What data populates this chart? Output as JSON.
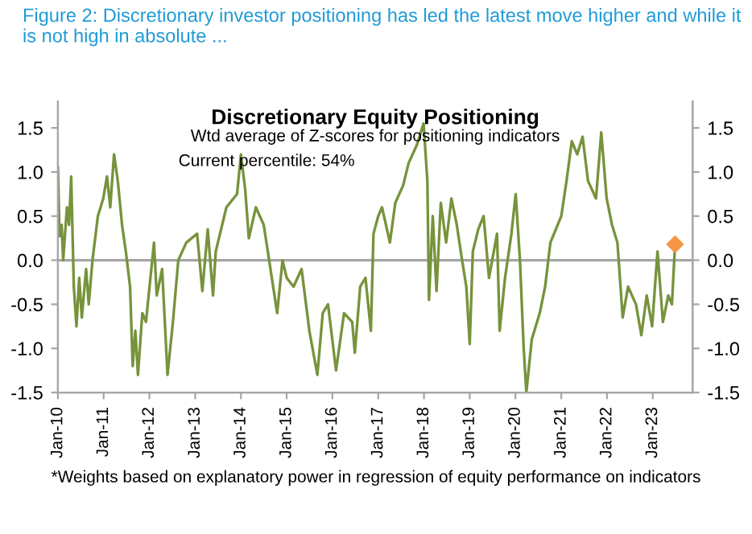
{
  "chart_data": {
    "type": "line",
    "title": "Discretionary Equity Positioning",
    "subtitle": "Wtd average of Z-scores for positioning indicators",
    "annotations": [
      "Figure 2: Discretionary investor positioning has led the latest move higher and while it is not high in absolute ...",
      "Current percentile: 54%",
      "*Weights based on explanatory power in regression of equity performance on indicators"
    ],
    "series": [
      {
        "color": "#77933c",
        "x": [
          "2010-01-01",
          "2010-01-14",
          "2010-01-31",
          "2010-02-12",
          "2010-03-14",
          "2010-03-31",
          "2010-04-17",
          "2010-05-08",
          "2010-05-29",
          "2010-06-20",
          "2010-07-11",
          "2010-08-14",
          "2010-09-04",
          "2010-10-04",
          "2010-11-16",
          "2010-12-29",
          "2011-01-28",
          "2011-02-23",
          "2011-03-25",
          "2011-04-24",
          "2011-05-28",
          "2011-06-27",
          "2011-07-31",
          "2011-08-21",
          "2011-09-11",
          "2011-10-02",
          "2011-11-06",
          "2011-12-05",
          "2012-02-07",
          "2012-02-29",
          "2012-04-12",
          "2012-05-25",
          "2012-07-07",
          "2012-08-19",
          "2012-10-22",
          "2013-01-16",
          "2013-02-27",
          "2013-04-11",
          "2013-05-23",
          "2013-06-14",
          "2013-09-07",
          "2013-12-01",
          "2014-01-01",
          "2014-02-04",
          "2014-03-05",
          "2014-04-30",
          "2014-07-02",
          "2014-08-14",
          "2014-10-17",
          "2014-11-29",
          "2015-01-01",
          "2015-02-25",
          "2015-04-30",
          "2015-07-01",
          "2015-09-03",
          "2015-10-16",
          "2015-11-27",
          "2016-01-30",
          "2016-04-03",
          "2016-06-07",
          "2016-06-28",
          "2016-08-10",
          "2016-09-21",
          "2016-11-03",
          "2016-11-24",
          "2017-01-01",
          "2017-01-31",
          "2017-04-04",
          "2017-05-17",
          "2017-07-19",
          "2017-08-31",
          "2017-11-03",
          "2017-12-29",
          "2018-01-28",
          "2018-02-10",
          "2018-03-12",
          "2018-04-11",
          "2018-05-15",
          "2018-06-27",
          "2018-08-08",
          "2018-09-20",
          "2018-11-01",
          "2018-12-05",
          "2019-01-01",
          "2019-01-26",
          "2019-03-10",
          "2019-04-22",
          "2019-06-04",
          "2019-08-07",
          "2019-08-28",
          "2019-10-10",
          "2019-11-30",
          "2020-01-03",
          "2020-02-06",
          "2020-03-07",
          "2020-03-28",
          "2020-05-10",
          "2020-07-13",
          "2020-08-25",
          "2020-10-06",
          "2021-01-01",
          "2021-02-12",
          "2021-03-26",
          "2021-05-08",
          "2021-06-20",
          "2021-08-02",
          "2021-10-05",
          "2021-11-16",
          "2021-12-29",
          "2022-02-10",
          "2022-03-25",
          "2022-05-06",
          "2022-06-18",
          "2022-08-20",
          "2022-10-02",
          "2022-11-14",
          "2022-12-27",
          "2023-02-08",
          "2023-03-23",
          "2023-05-05",
          "2023-06-03",
          "2023-06-28"
        ],
        "values": [
          1.06,
          0.27,
          0.4,
          0.0,
          0.6,
          0.4,
          0.95,
          -0.3,
          -0.75,
          -0.2,
          -0.65,
          -0.1,
          -0.5,
          0.0,
          0.5,
          0.7,
          0.95,
          0.6,
          1.2,
          0.9,
          0.4,
          0.1,
          -0.3,
          -1.2,
          -0.8,
          -1.3,
          -0.6,
          -0.7,
          0.2,
          -0.4,
          -0.1,
          -1.3,
          -0.7,
          0.0,
          0.2,
          0.3,
          -0.35,
          0.35,
          -0.4,
          0.1,
          0.6,
          0.75,
          1.2,
          0.8,
          0.25,
          0.6,
          0.4,
          0.0,
          -0.6,
          0.0,
          -0.2,
          -0.3,
          -0.1,
          -0.8,
          -1.3,
          -0.6,
          -0.5,
          -1.25,
          -0.6,
          -0.7,
          -1.05,
          -0.3,
          -0.2,
          -0.8,
          0.3,
          0.5,
          0.6,
          0.2,
          0.65,
          0.85,
          1.1,
          1.3,
          1.55,
          0.9,
          -0.45,
          0.5,
          -0.35,
          0.65,
          0.2,
          0.7,
          0.4,
          0.0,
          -0.3,
          -0.95,
          0.1,
          0.35,
          0.5,
          -0.2,
          0.3,
          -0.8,
          -0.2,
          0.3,
          0.75,
          0.0,
          -1.0,
          -1.5,
          -0.9,
          -0.6,
          -0.3,
          0.2,
          0.5,
          0.9,
          1.35,
          1.2,
          1.4,
          0.9,
          0.7,
          1.45,
          0.7,
          0.4,
          0.2,
          -0.65,
          -0.3,
          -0.5,
          -0.85,
          -0.4,
          -0.75,
          0.1,
          -0.7,
          -0.4,
          -0.5,
          0.18
        ]
      },
      {
        "color": "#f79646",
        "type": "scatter",
        "marker": "diamond",
        "x": [
          "2023-06-28"
        ],
        "values": [
          0.18
        ]
      }
    ],
    "xlim": [
      "2010-01-01",
      "2023-11-15"
    ],
    "xticks": [
      {
        "value": "2010-01-01",
        "label": "Jan-10"
      },
      {
        "value": "2011-01-01",
        "label": "Jan-11"
      },
      {
        "value": "2012-01-01",
        "label": "Jan-12"
      },
      {
        "value": "2013-01-01",
        "label": "Jan-13"
      },
      {
        "value": "2014-01-01",
        "label": "Jan-14"
      },
      {
        "value": "2015-01-01",
        "label": "Jan-15"
      },
      {
        "value": "2016-01-01",
        "label": "Jan-16"
      },
      {
        "value": "2017-01-01",
        "label": "Jan-17"
      },
      {
        "value": "2018-01-01",
        "label": "Jan-18"
      },
      {
        "value": "2019-01-01",
        "label": "Jan-19"
      },
      {
        "value": "2020-01-01",
        "label": "Jan-20"
      },
      {
        "value": "2021-01-01",
        "label": "Jan-21"
      },
      {
        "value": "2022-01-01",
        "label": "Jan-22"
      },
      {
        "value": "2023-01-01",
        "label": "Jan-23"
      }
    ],
    "ylim": [
      -1.5,
      1.8
    ],
    "yticks": [
      {
        "value": -1.5,
        "label": "-1.5"
      },
      {
        "value": -1.0,
        "label": "-1.0"
      },
      {
        "value": -0.5,
        "label": "-0.5"
      },
      {
        "value": 0.0,
        "label": "0.0"
      },
      {
        "value": 0.5,
        "label": "0.5"
      },
      {
        "value": 1.0,
        "label": "1.0"
      },
      {
        "value": 1.5,
        "label": "1.5"
      }
    ],
    "y2lim": [
      -1.5,
      1.8
    ],
    "y2ticks": [
      {
        "value": -1.5,
        "label": "-1.5"
      },
      {
        "value": -1.0,
        "label": "-1.0"
      },
      {
        "value": -0.5,
        "label": "-0.5"
      },
      {
        "value": 0.0,
        "label": "0.0"
      },
      {
        "value": 0.5,
        "label": "0.5"
      },
      {
        "value": 1.0,
        "label": "1.0"
      },
      {
        "value": 1.5,
        "label": "1.5"
      }
    ],
    "ref_lines": [
      {
        "axis": "y",
        "value": 0,
        "color": "#a6a6a6"
      }
    ],
    "grid": false,
    "legend": false,
    "line_style": "solid"
  }
}
